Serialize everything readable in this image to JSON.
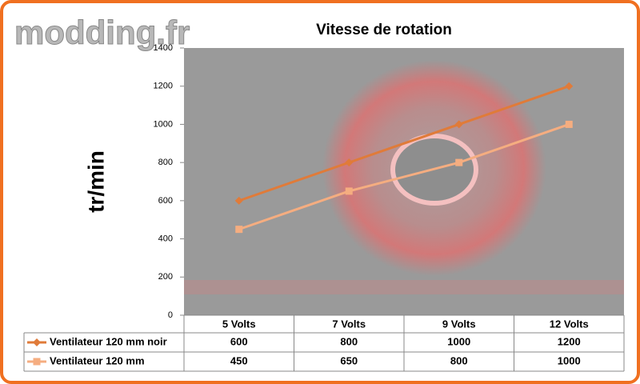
{
  "watermark": "modding.fr",
  "chart_data": {
    "type": "line",
    "title": "Vitesse de rotation",
    "y_label": "tr/min",
    "categories": [
      "5 Volts",
      "7 Volts",
      "9 Volts",
      "12 Volts"
    ],
    "series": [
      {
        "name": "Ventilateur 120 mm noir",
        "color": "#e07b39",
        "marker": "diamond",
        "values": [
          600,
          800,
          1000,
          1200
        ]
      },
      {
        "name": "Ventilateur 120 mm",
        "color": "#f5ad80",
        "marker": "square",
        "values": [
          450,
          650,
          800,
          1000
        ]
      }
    ],
    "ylim": [
      0,
      1400
    ],
    "yticks": [
      0,
      200,
      400,
      600,
      800,
      1000,
      1200,
      1400
    ],
    "grid": false
  }
}
